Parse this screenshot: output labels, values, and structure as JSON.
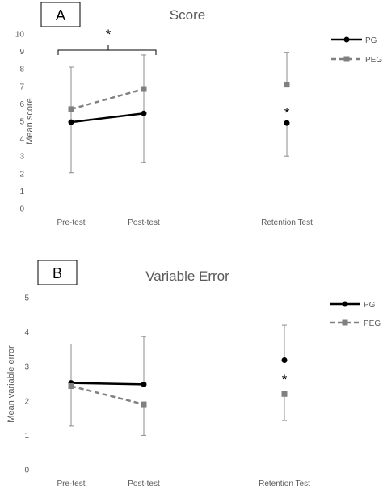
{
  "chart_data": [
    {
      "type": "line",
      "panel_label": "A",
      "title": "Score",
      "ylabel": "Mean score",
      "xlabel": "",
      "ylim": [
        0,
        10
      ],
      "yticks": [
        0,
        1,
        2,
        3,
        4,
        5,
        6,
        7,
        8,
        9,
        10
      ],
      "categories": [
        "Pre-test",
        "Post-test",
        "Retention Test"
      ],
      "grid": false,
      "legend": "top-right",
      "series": [
        {
          "name": "PG",
          "color": "#000000",
          "style": "solid",
          "marker": "circle",
          "values": [
            4.95,
            5.45,
            4.9
          ],
          "error_low": [
            null,
            null,
            3.0
          ],
          "error_high": [
            null,
            null,
            null
          ]
        },
        {
          "name": "PEG",
          "color": "#808080",
          "style": "dashed",
          "marker": "square",
          "values": [
            5.7,
            6.85,
            7.1
          ],
          "error_low": [
            2.05,
            2.65,
            null
          ],
          "error_high": [
            8.1,
            8.8,
            8.95
          ]
        }
      ],
      "annotations": [
        {
          "text": "*",
          "position": "bracket above Pre-test and Post-test"
        },
        {
          "text": "*",
          "position": "between PG and PEG at Retention Test"
        }
      ]
    },
    {
      "type": "line",
      "panel_label": "B",
      "title": "Variable Error",
      "ylabel": "Mean variable error",
      "xlabel": "",
      "ylim": [
        0,
        5
      ],
      "yticks": [
        0,
        1,
        2,
        3,
        4,
        5
      ],
      "categories": [
        "Pre-test",
        "Post-test",
        "Retention Test"
      ],
      "grid": false,
      "legend": "top-right",
      "series": [
        {
          "name": "PG",
          "color": "#000000",
          "style": "solid",
          "marker": "circle",
          "values": [
            2.52,
            2.48,
            3.18
          ],
          "error_low": [
            null,
            null,
            null
          ],
          "error_high": [
            3.65,
            3.87,
            4.2
          ]
        },
        {
          "name": "PEG",
          "color": "#808080",
          "style": "dashed",
          "marker": "square",
          "values": [
            2.43,
            1.9,
            2.2
          ],
          "error_low": [
            1.27,
            1.0,
            1.43
          ],
          "error_high": [
            null,
            null,
            null
          ]
        }
      ],
      "annotations": [
        {
          "text": "*",
          "position": "between PG and PEG at Retention Test"
        }
      ]
    }
  ]
}
